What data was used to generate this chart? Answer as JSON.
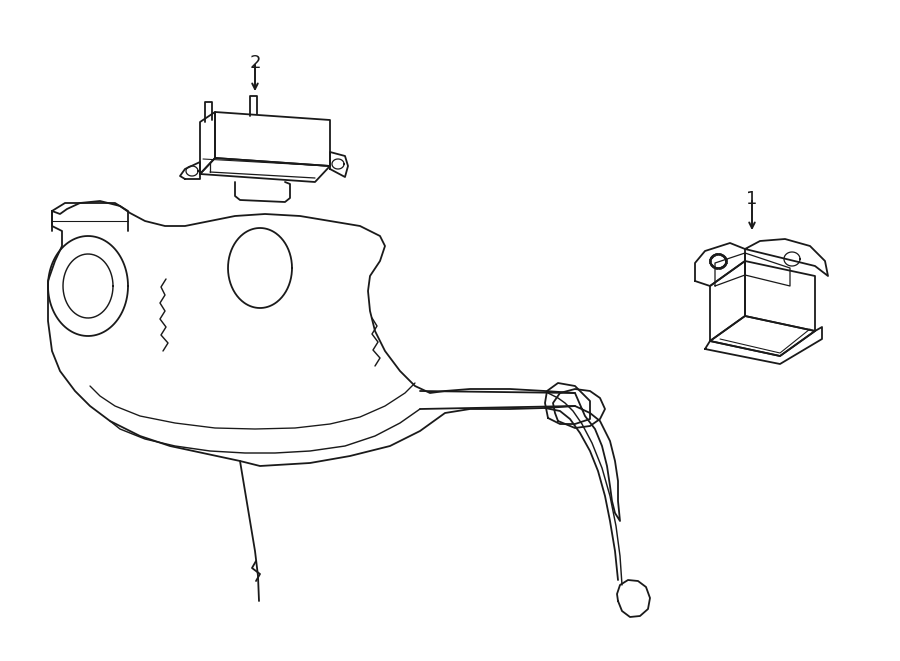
{
  "background_color": "#ffffff",
  "line_color": "#1a1a1a",
  "line_width": 1.3,
  "fig_width": 9.0,
  "fig_height": 6.61,
  "dpi": 100
}
